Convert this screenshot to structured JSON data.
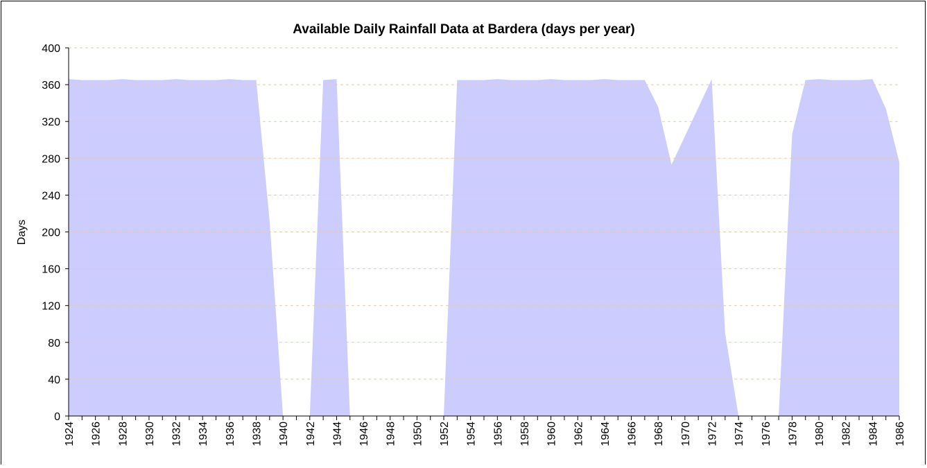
{
  "chart_data": {
    "type": "area",
    "title": "Available Daily Rainfall Data at Bardera  (days per year)",
    "y_label": "Days",
    "categories": [
      "1924",
      null,
      "1926",
      null,
      "1928",
      null,
      "1930",
      null,
      "1932",
      null,
      "1934",
      null,
      "1936",
      null,
      "1938",
      null,
      "1940",
      null,
      "1942",
      null,
      "1944",
      null,
      "1946",
      null,
      "1948",
      null,
      "1950",
      null,
      "1952",
      null,
      "1954",
      null,
      "1956",
      null,
      "1958",
      null,
      "1960",
      null,
      "1962",
      null,
      "1964",
      null,
      "1966",
      null,
      "1968",
      null,
      "1970",
      null,
      "1972",
      null,
      "1974",
      null,
      "1976",
      null,
      "1978",
      null,
      "1980",
      null,
      "1982",
      null,
      "1984",
      null,
      "1986"
    ],
    "values": [
      366,
      365,
      365,
      365,
      366,
      365,
      365,
      365,
      366,
      365,
      365,
      365,
      366,
      365,
      365,
      212,
      0,
      0,
      0,
      365,
      366,
      0,
      0,
      0,
      0,
      0,
      0,
      0,
      0,
      365,
      365,
      365,
      366,
      365,
      365,
      365,
      366,
      365,
      365,
      365,
      366,
      365,
      365,
      365,
      336,
      273,
      304,
      335,
      366,
      90,
      0,
      0,
      0,
      0,
      306,
      365,
      366,
      365,
      365,
      365,
      366,
      334,
      276
    ],
    "color": "#ccccff",
    "ylim": [
      0,
      400
    ],
    "yticks": [
      0,
      40,
      80,
      120,
      160,
      200,
      240,
      280,
      320,
      360,
      400
    ],
    "grid": true
  }
}
